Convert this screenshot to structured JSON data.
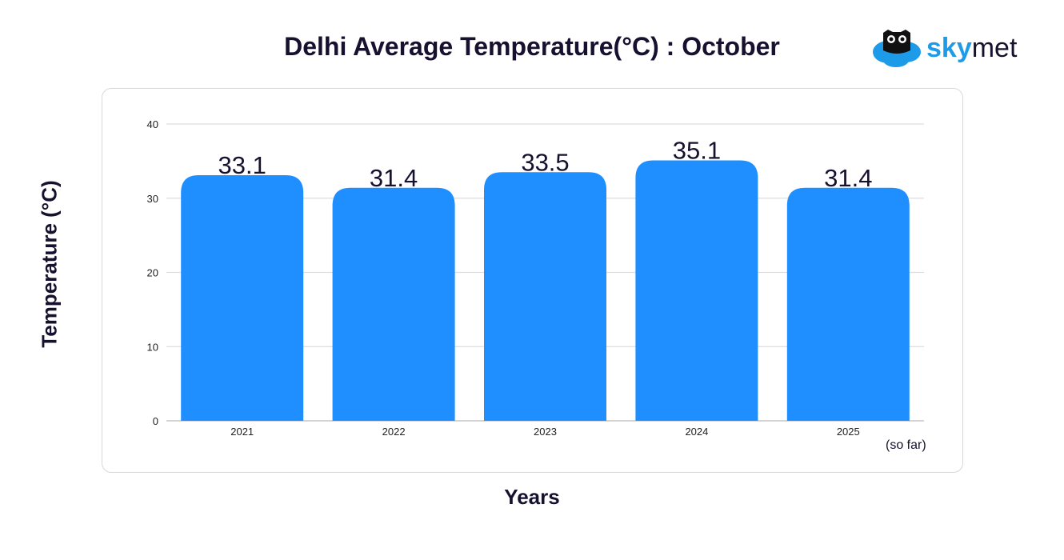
{
  "chart_data": {
    "type": "bar",
    "title": "Delhi Average Temperature(°C) : October",
    "xlabel": "Years",
    "ylabel": "Temperature (°C)",
    "categories": [
      "2021",
      "2022",
      "2023",
      "2024",
      "2025"
    ],
    "values": [
      33.1,
      31.4,
      33.5,
      35.1,
      31.4
    ],
    "value_labels": [
      "33.1",
      "31.4",
      "33.5",
      "35.1",
      "31.4"
    ],
    "ylim": [
      0,
      40
    ],
    "yticks": [
      0,
      10,
      20,
      30,
      40
    ],
    "grid": true,
    "annotation": "(so far)",
    "bar_color": "#1f8fff"
  },
  "logo": {
    "sky": "sky",
    "met": "met"
  }
}
